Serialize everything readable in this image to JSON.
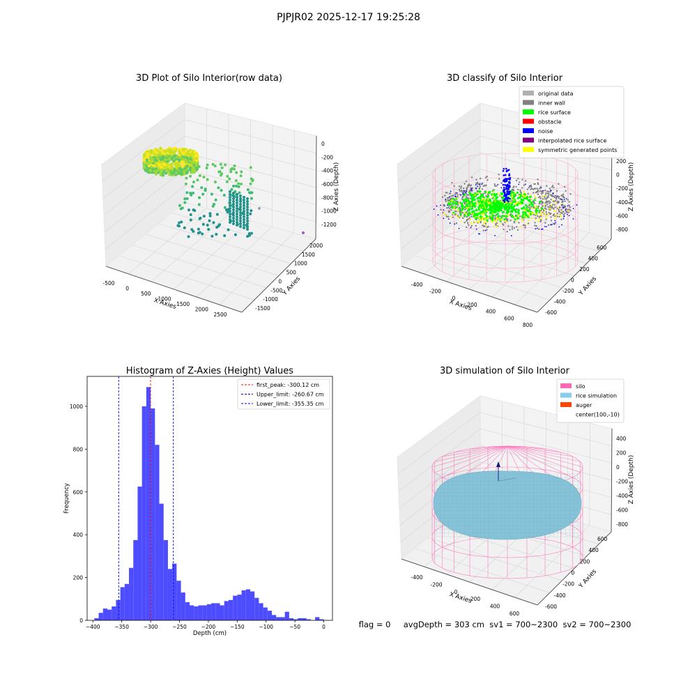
{
  "figure": {
    "suptitle": "PJPJR02 2025-12-17 19:25:28",
    "status_text": "flag = 0     avgDepth = 303 cm  sv1 = 700~2300  sv2 = 700~2300"
  },
  "panels": {
    "raw": {
      "title": "3D Plot of Silo Interior(row data)",
      "xlabel": "X Axies",
      "ylabel": "Y Axies",
      "zlabel": "Z Axies (Depth)",
      "xticks": [
        "-500",
        "0",
        "500",
        "1000",
        "1500",
        "2000",
        "2500"
      ],
      "yticks": [
        "-1500",
        "-1000",
        "-500",
        "0",
        "500",
        "1000",
        "1500",
        "2000"
      ],
      "zticks": [
        "0",
        "-200",
        "-400",
        "-600",
        "-800",
        "-1000",
        "-1200"
      ],
      "colormap": [
        "#440154",
        "#3b528b",
        "#21918c",
        "#5ec962",
        "#fde725"
      ]
    },
    "classify": {
      "title": "3D classify of Silo Interior",
      "xlabel": "X Axies",
      "ylabel": "Y Axies",
      "zlabel": "Z Axies (Depth)",
      "xticks": [
        "-400",
        "-200",
        "0",
        "200",
        "400",
        "600",
        "800"
      ],
      "yticks": [
        "-600",
        "-400",
        "-200",
        "0",
        "200",
        "400",
        "600"
      ],
      "zticks": [
        "200",
        "0",
        "-200",
        "-400",
        "-600",
        "-800"
      ],
      "legend": [
        {
          "label": "original data",
          "color": "#b0b0b0"
        },
        {
          "label": "inner wall",
          "color": "#808080"
        },
        {
          "label": "rice surface",
          "color": "#00ff00"
        },
        {
          "label": "obstacle",
          "color": "#ff0000"
        },
        {
          "label": "noise",
          "color": "#0000ff"
        },
        {
          "label": "interpolated rice surface",
          "color": "#800080"
        },
        {
          "label": "symmetric generated points",
          "color": "#ffff00"
        }
      ],
      "wire_color": "#ff9ec8"
    },
    "histogram": {
      "title": "Histogram of Z-Axies (Height) Values",
      "xlabel": "Depth (cm)",
      "ylabel": "Frequency",
      "xticks": [
        "−400",
        "−350",
        "−300",
        "−250",
        "−200",
        "−150",
        "−100",
        "−50",
        "0"
      ],
      "yticks": [
        "0",
        "200",
        "400",
        "600",
        "800",
        "1000"
      ],
      "legend": [
        {
          "label": "first_peak: -300.12 cm",
          "color": "#ff0000"
        },
        {
          "label": "Upper_limit: -260.67 cm",
          "color": "#0000ff"
        },
        {
          "label": "Lower_limit: -355.35 cm",
          "color": "#0000ff"
        }
      ]
    },
    "simulation": {
      "title": "3D simulation of Silo Interior",
      "xlabel": "X Axies",
      "ylabel": "Y Axies",
      "zlabel": "Z Axies (Depth)",
      "xticks": [
        "-400",
        "-200",
        "0",
        "200",
        "400",
        "600"
      ],
      "yticks": [
        "-600",
        "-400",
        "-200",
        "0",
        "200",
        "400",
        "600"
      ],
      "zticks": [
        "400",
        "200",
        "0",
        "-200",
        "-400",
        "-600",
        "-800"
      ],
      "legend": [
        {
          "label": "silo",
          "color": "#ff69b4"
        },
        {
          "label": "rice simulation",
          "color": "#87ceeb"
        },
        {
          "label": "auger",
          "color": "#ff4500"
        },
        {
          "label": "center(100,-10)",
          "color": ""
        }
      ]
    }
  },
  "chart_data": [
    {
      "type": "scatter",
      "title": "3D Plot of Silo Interior(row data)",
      "xlabel": "X Axies",
      "ylabel": "Y Axies",
      "zlabel": "Z Axies (Depth)",
      "xlim": [
        -600,
        2800
      ],
      "ylim": [
        -1600,
        2100
      ],
      "zlim": [
        -1300,
        50
      ],
      "series": []
    },
    {
      "type": "scatter",
      "title": "3D classify of Silo Interior",
      "xlabel": "X Axies",
      "ylabel": "Y Axies",
      "zlabel": "Z Axies (Depth)",
      "xlim": [
        -450,
        800
      ],
      "ylim": [
        -650,
        650
      ],
      "zlim": [
        -900,
        250
      ],
      "series": [
        {
          "name": "original data"
        },
        {
          "name": "inner wall"
        },
        {
          "name": "rice surface"
        },
        {
          "name": "obstacle"
        },
        {
          "name": "noise"
        },
        {
          "name": "interpolated rice surface"
        },
        {
          "name": "symmetric generated points"
        }
      ]
    },
    {
      "type": "bar",
      "title": "Histogram of Z-Axies (Height) Values",
      "xlabel": "Depth (cm)",
      "ylabel": "Frequency",
      "xlim": [
        -410,
        15
      ],
      "ylim": [
        0,
        1140
      ],
      "bin_width": 7.5,
      "bin_start": [
        -397.5,
        -390,
        -382.5,
        -375,
        -367.5,
        -360,
        -352.5,
        -345,
        -337.5,
        -330,
        -322.5,
        -315,
        -307.5,
        -300,
        -292.5,
        -285,
        -277.5,
        -270,
        -262.5,
        -255,
        -247.5,
        -240,
        -232.5,
        -225,
        -217.5,
        -210,
        -202.5,
        -195,
        -187.5,
        -180,
        -172.5,
        -165,
        -157.5,
        -150,
        -142.5,
        -135,
        -127.5,
        -120,
        -112.5,
        -105,
        -97.5,
        -90,
        -82.5,
        -75,
        -67.5,
        -60,
        -52.5,
        -45,
        -37.5,
        -30,
        -22.5,
        -15,
        -7.5
      ],
      "values": [
        10,
        35,
        55,
        50,
        65,
        95,
        155,
        170,
        245,
        375,
        625,
        1000,
        1090,
        990,
        820,
        545,
        375,
        240,
        265,
        185,
        130,
        85,
        70,
        65,
        70,
        70,
        75,
        80,
        80,
        70,
        90,
        95,
        115,
        120,
        140,
        145,
        135,
        105,
        80,
        60,
        45,
        25,
        15,
        15,
        40,
        10,
        5,
        10,
        10,
        5,
        0,
        15,
        5
      ],
      "lines": [
        {
          "name": "first_peak",
          "x": -300.12,
          "color": "#ff0000"
        },
        {
          "name": "Upper_limit",
          "x": -260.67,
          "color": "#0000ff"
        },
        {
          "name": "Lower_limit",
          "x": -355.35,
          "color": "#0000ff"
        }
      ]
    },
    {
      "type": "scatter",
      "title": "3D simulation of Silo Interior",
      "xlabel": "X Axies",
      "ylabel": "Y Axies",
      "zlabel": "Z Axies (Depth)",
      "xlim": [
        -500,
        750
      ],
      "ylim": [
        -700,
        700
      ],
      "zlim": [
        -900,
        450
      ],
      "series": [
        {
          "name": "silo"
        },
        {
          "name": "rice simulation"
        },
        {
          "name": "auger"
        },
        {
          "name": "center(100,-10)"
        }
      ]
    }
  ]
}
